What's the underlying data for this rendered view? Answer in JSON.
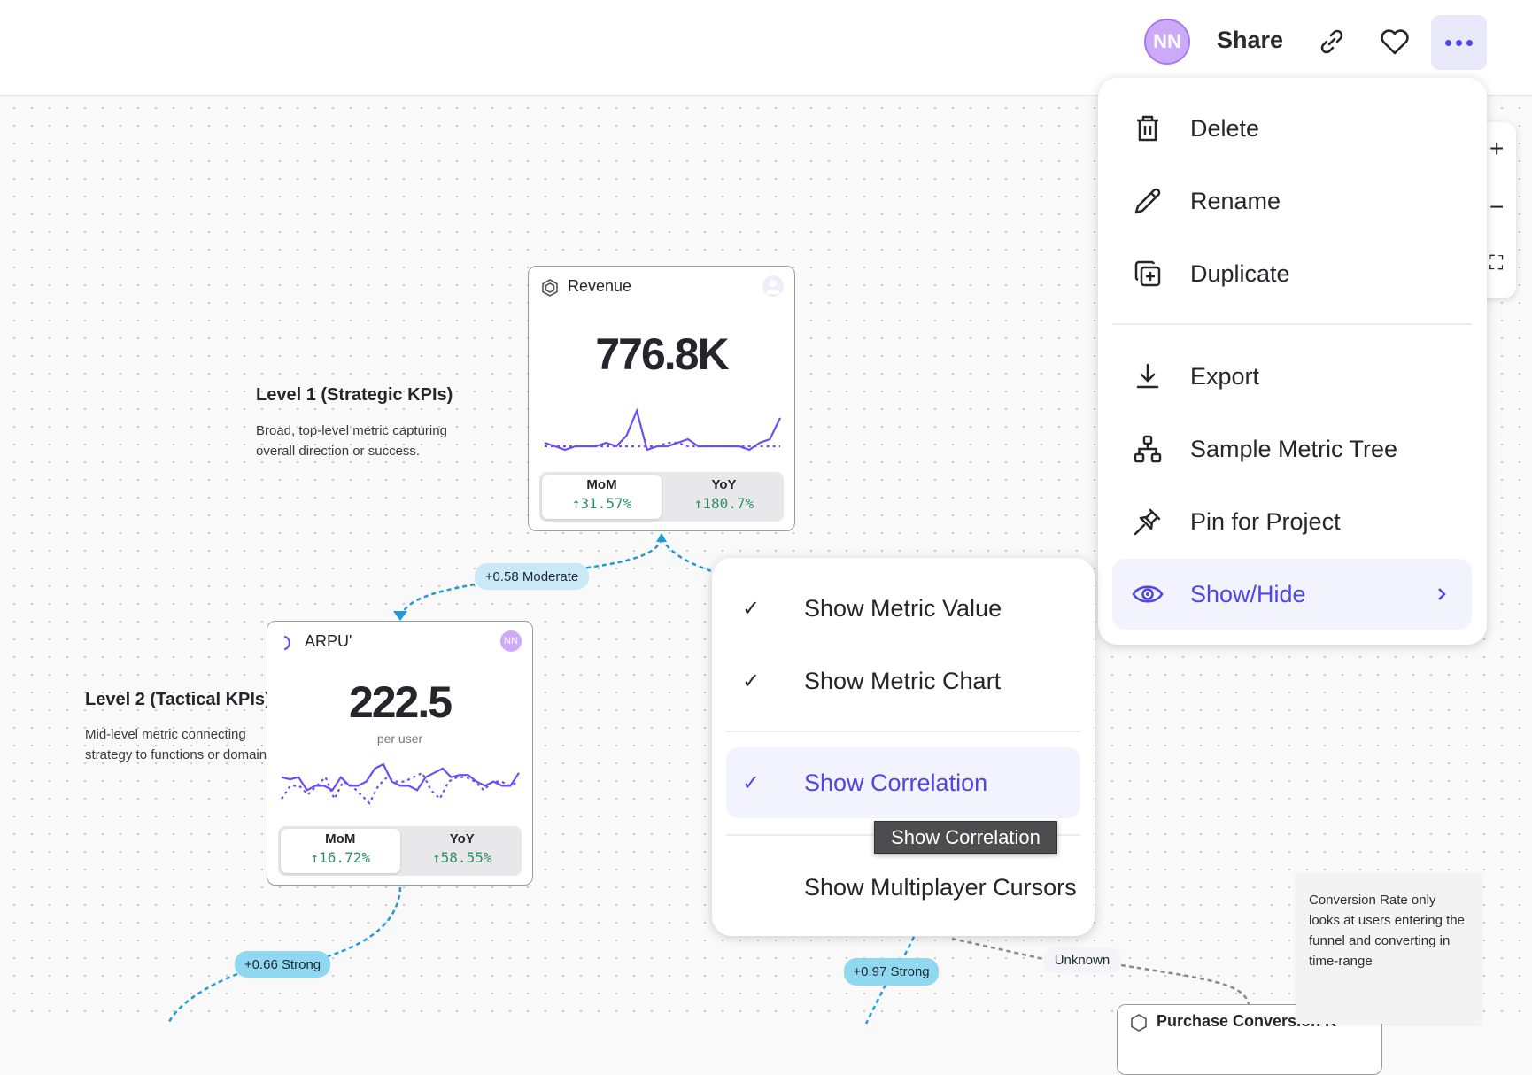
{
  "header": {
    "avatar_initials": "NN",
    "share_label": "Share",
    "icons": [
      "link-icon",
      "heart-icon",
      "more-icon"
    ],
    "accent": "#4f46e5"
  },
  "zoom_controls": {
    "zoom_in": "+",
    "zoom_out": "−",
    "fit": "⛶"
  },
  "menu": {
    "items": [
      {
        "label": "Delete",
        "icon": "trash-icon"
      },
      {
        "label": "Rename",
        "icon": "pencil-icon"
      },
      {
        "label": "Duplicate",
        "icon": "duplicate-icon"
      },
      {
        "label": "Export",
        "icon": "download-icon"
      },
      {
        "label": "Sample Metric Tree",
        "icon": "tree-icon"
      },
      {
        "label": "Pin for Project",
        "icon": "pin-icon"
      },
      {
        "label": "Show/Hide",
        "icon": "eye-icon",
        "active": true
      }
    ]
  },
  "submenu": {
    "items": [
      {
        "label": "Show Metric Value",
        "checked": true
      },
      {
        "label": "Show Metric Chart",
        "checked": true
      },
      {
        "label": "Show Correlation",
        "checked": true,
        "active": true
      },
      {
        "label": "Show Multiplayer Cursors",
        "checked": false
      }
    ],
    "check": "✓"
  },
  "tooltip": "Show Correlation",
  "levels": [
    {
      "title": "Level 1 (Strategic KPIs)",
      "desc_lines": [
        "Broad, top-level metric capturing",
        "overall direction or success."
      ]
    },
    {
      "title": "Level 2 (Tactical KPIs)",
      "desc_lines": [
        "Mid-level metric connecting",
        "strategy to functions or domains"
      ]
    }
  ],
  "cards": {
    "revenue": {
      "title": "Revenue",
      "value": "776.8K",
      "mom_label": "MoM",
      "mom_value": "↑31.57%",
      "yoy_label": "YoY",
      "yoy_value": "↑180.7%",
      "sparkline": [
        5,
        4,
        3,
        4,
        4,
        4,
        5,
        4,
        7,
        14,
        3,
        4,
        4,
        5,
        6,
        4,
        4,
        4,
        4,
        4,
        3,
        5,
        6,
        12
      ],
      "sparkline_compare": [
        4,
        4,
        4,
        4,
        4,
        4,
        4,
        4,
        4,
        4,
        4,
        4,
        5,
        5,
        4,
        4,
        4,
        4,
        4,
        4,
        4,
        4,
        4,
        4
      ]
    },
    "arpu": {
      "title": "ARPU'",
      "avatar": "NN",
      "value": "222.5",
      "unit": "per user",
      "mom_label": "MoM",
      "mom_value": "↑16.72%",
      "yoy_label": "YoY",
      "yoy_value": "↑58.55%",
      "sparkline": [
        7,
        6.5,
        7,
        4,
        5,
        5,
        4,
        7,
        5,
        5,
        6,
        9,
        10,
        6,
        5,
        5,
        4,
        7,
        8,
        9,
        7,
        7.5,
        7.5,
        6,
        5,
        6,
        5,
        5,
        8
      ],
      "sparkline_compare": [
        2,
        5,
        5,
        3,
        5,
        7,
        2,
        6,
        5,
        3,
        1,
        5,
        7,
        6,
        6,
        7,
        8,
        4,
        2,
        6,
        7,
        7,
        6,
        4,
        6,
        6,
        5,
        6
      ]
    },
    "purchase": {
      "title": "Purchase Conversion R"
    }
  },
  "correlations": [
    {
      "label": "+0.58 Moderate",
      "color": "#c9e8f8"
    },
    {
      "label": "+0.66 Strong",
      "color": "#8fd8f0"
    },
    {
      "label": "+0.97 Strong",
      "color": "#8fd8f0"
    },
    {
      "label": "Unknown",
      "color": "#f3f3f8"
    }
  ],
  "note": "Conversion Rate only looks at users entering the funnel and converting in time-range",
  "colors": {
    "line": "#6c4df6",
    "positive": "#2f9063",
    "edge": "#1f9bd7"
  }
}
